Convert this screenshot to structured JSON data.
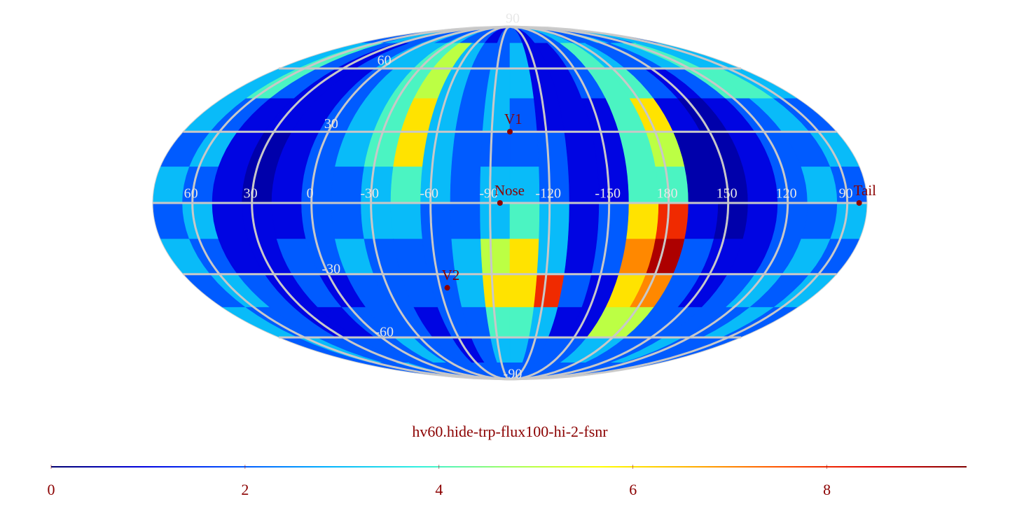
{
  "chart_data": {
    "type": "mollweide-heatmap",
    "title": "hv60.hide-trp-flux100-hi-2-fsnr",
    "lon_ticks": [
      60,
      30,
      0,
      -30,
      -60,
      -90,
      -120,
      -150,
      180,
      150,
      120,
      90
    ],
    "lat_ticks": [
      90,
      60,
      30,
      -30,
      -60,
      -90
    ],
    "values": [
      [
        2,
        2,
        3,
        2,
        2,
        3,
        2,
        3,
        2,
        2,
        1,
        2,
        2,
        1,
        2,
        2,
        3,
        2,
        2,
        3,
        2,
        2,
        3,
        2
      ],
      [
        3,
        4,
        2,
        1,
        2,
        3,
        3,
        4,
        5,
        3,
        2,
        2,
        3,
        1,
        1,
        2,
        4,
        3,
        2,
        2,
        3,
        4,
        3,
        3
      ],
      [
        3,
        4,
        2,
        1,
        1,
        2,
        3,
        4,
        5,
        3,
        2,
        3,
        3,
        1,
        1,
        2,
        4,
        4,
        2,
        1,
        2,
        4,
        4,
        3
      ],
      [
        3,
        2,
        1,
        1,
        1,
        2,
        3,
        4,
        6,
        3,
        2,
        3,
        2,
        1,
        1,
        1,
        4,
        6,
        1,
        0.5,
        1,
        2,
        3,
        2
      ],
      [
        2,
        3,
        1,
        0.5,
        1,
        2,
        3,
        4,
        6,
        3,
        2,
        2,
        2,
        2,
        1,
        1,
        4,
        5,
        0.5,
        0.5,
        1,
        2,
        2,
        3
      ],
      [
        3,
        2,
        1,
        0.5,
        1,
        2,
        2,
        3,
        4,
        3,
        2,
        3,
        3,
        2,
        1,
        1,
        4,
        4,
        0.5,
        0.5,
        1,
        2,
        3,
        2
      ],
      [
        2,
        3,
        1,
        1,
        1,
        2,
        2,
        3,
        3,
        2,
        2,
        3,
        4,
        3,
        1,
        2,
        6,
        8,
        1,
        0.5,
        1,
        2,
        2,
        3
      ],
      [
        3,
        2,
        1,
        1,
        2,
        2,
        3,
        2,
        2,
        2,
        3,
        5,
        6,
        3,
        1,
        2,
        7,
        9,
        2,
        1,
        1,
        2,
        3,
        2
      ],
      [
        2,
        3,
        2,
        1,
        2,
        1,
        2,
        2,
        2,
        2,
        3,
        6,
        6,
        8,
        2,
        1,
        6,
        7,
        2,
        1,
        2,
        3,
        2,
        3
      ],
      [
        3,
        2,
        2,
        1,
        1,
        2,
        2,
        2,
        1,
        2,
        2,
        4,
        4,
        3,
        1,
        1,
        5,
        5,
        2,
        2,
        2,
        2,
        3,
        2
      ],
      [
        2,
        3,
        2,
        2,
        2,
        2,
        3,
        2,
        2,
        1,
        2,
        3,
        3,
        2,
        2,
        2,
        3,
        3,
        2,
        2,
        3,
        2,
        2,
        2
      ],
      [
        2,
        2,
        2,
        3,
        2,
        2,
        2,
        2,
        2,
        2,
        2,
        2,
        2,
        2,
        2,
        2,
        2,
        2,
        2,
        2,
        2,
        2,
        2,
        2
      ]
    ],
    "points": [
      {
        "name": "V1",
        "lon": -100,
        "lat": 30
      },
      {
        "name": "Nose",
        "lon": -95,
        "lat": 0
      },
      {
        "name": "V2",
        "lon": -64,
        "lat": -36
      },
      {
        "name": "Tail",
        "lon": 84,
        "lat": 0
      }
    ],
    "point_color": "#8b0000",
    "grid_color": "#c8c8c8",
    "colormap": [
      "#000070",
      "#0000e0",
      "#0050ff",
      "#00b0ff",
      "#30f0e0",
      "#a0ff60",
      "#ffff00",
      "#ffb000",
      "#ff5000",
      "#e00000",
      "#800000"
    ],
    "zlim": [
      0,
      9.44
    ],
    "zticks": [
      0,
      2,
      4,
      6,
      8
    ]
  }
}
